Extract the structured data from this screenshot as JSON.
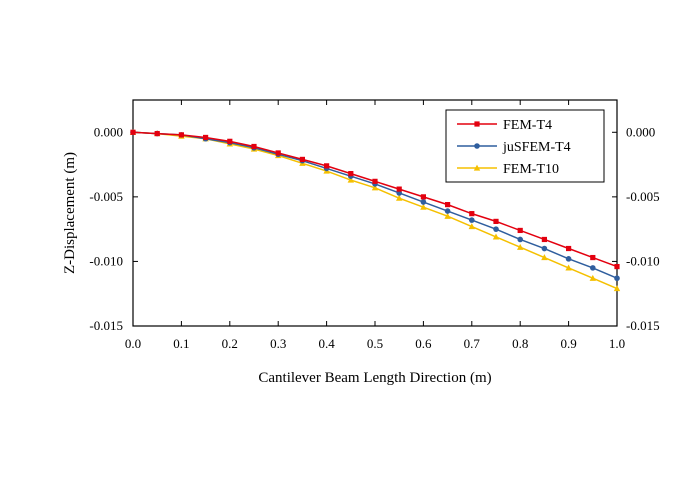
{
  "chart_data": {
    "type": "line",
    "xlabel": "Cantilever Beam Length Direction (m)",
    "ylabel": "Z-Displacement (m)",
    "xlim": [
      0.0,
      1.0
    ],
    "ylim": [
      -0.015,
      0.0025
    ],
    "x_ticks": [
      0.0,
      0.1,
      0.2,
      0.3,
      0.4,
      0.5,
      0.6,
      0.7,
      0.8,
      0.9,
      1.0
    ],
    "x_tick_labels": [
      "0.0",
      "0.1",
      "0.2",
      "0.3",
      "0.4",
      "0.5",
      "0.6",
      "0.7",
      "0.8",
      "0.9",
      "1.0"
    ],
    "y_ticks": [
      0.0,
      -0.005,
      -0.01,
      -0.015
    ],
    "y_tick_labels": [
      "0.000",
      "-0.005",
      "-0.010",
      "-0.015"
    ],
    "right_y_tick_labels": [
      "0.000",
      "-0.005",
      "-0.010",
      "-0.015"
    ],
    "legend_position": "top-right",
    "grid": false,
    "x": [
      0.0,
      0.05,
      0.1,
      0.15,
      0.2,
      0.25,
      0.3,
      0.35,
      0.4,
      0.45,
      0.5,
      0.55,
      0.6,
      0.65,
      0.7,
      0.75,
      0.8,
      0.85,
      0.9,
      0.95,
      1.0
    ],
    "series": [
      {
        "name": "FEM-T4",
        "color": "#e3000f",
        "marker": "square",
        "values": [
          0.0,
          -0.0001,
          -0.0002,
          -0.0004,
          -0.0007,
          -0.0011,
          -0.0016,
          -0.0021,
          -0.0026,
          -0.0032,
          -0.0038,
          -0.0044,
          -0.005,
          -0.0056,
          -0.0063,
          -0.0069,
          -0.0076,
          -0.0083,
          -0.009,
          -0.0097,
          -0.0104
        ]
      },
      {
        "name": "juSFEM-T4",
        "color": "#2f5e9e",
        "marker": "circle",
        "values": [
          0.0,
          -0.0001,
          -0.0002,
          -0.0005,
          -0.0008,
          -0.0012,
          -0.0017,
          -0.0022,
          -0.0028,
          -0.0034,
          -0.004,
          -0.0047,
          -0.0054,
          -0.0061,
          -0.0068,
          -0.0075,
          -0.0083,
          -0.009,
          -0.0098,
          -0.0105,
          -0.0113
        ]
      },
      {
        "name": "FEM-T10",
        "color": "#f5c000",
        "marker": "triangle",
        "values": [
          0.0,
          -0.0001,
          -0.0003,
          -0.0005,
          -0.0009,
          -0.0013,
          -0.0018,
          -0.0024,
          -0.003,
          -0.0037,
          -0.0043,
          -0.0051,
          -0.0058,
          -0.0065,
          -0.0073,
          -0.0081,
          -0.0089,
          -0.0097,
          -0.0105,
          -0.0113,
          -0.0121
        ]
      }
    ]
  }
}
